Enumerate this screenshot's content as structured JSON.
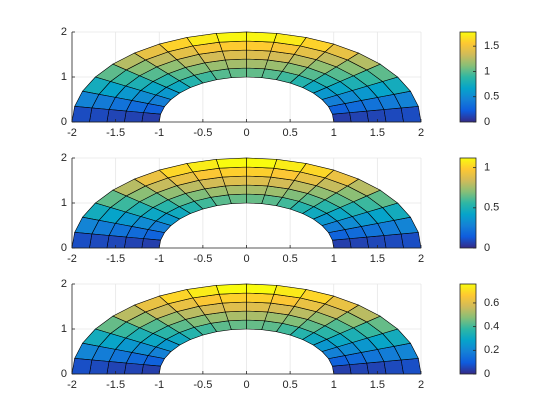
{
  "chart_data": [
    {
      "type": "surface",
      "xlim": [
        -2,
        2
      ],
      "ylim": [
        0,
        2
      ],
      "xticks": [
        -2,
        -1.5,
        -1,
        -0.5,
        0,
        0.5,
        1,
        1.5,
        2
      ],
      "yticks": [
        0,
        1,
        2
      ],
      "grid": true,
      "r_edges": [
        1,
        1.2,
        1.4,
        1.6,
        1.8,
        2
      ],
      "theta_edges": [
        0,
        10,
        20,
        30,
        40,
        50,
        60,
        70,
        80,
        90,
        100,
        110,
        120,
        130,
        140,
        150,
        160,
        170,
        180
      ],
      "values": [
        [
          0.09,
          0.26,
          0.43,
          0.59,
          0.72,
          0.84,
          0.93,
          0.99,
          1.02,
          1.02,
          0.99,
          0.93,
          0.84,
          0.72,
          0.59,
          0.43,
          0.26,
          0.09
        ],
        [
          0.11,
          0.31,
          0.51,
          0.69,
          0.85,
          0.99,
          1.1,
          1.17,
          1.2,
          1.2,
          1.17,
          1.1,
          0.99,
          0.85,
          0.69,
          0.51,
          0.31,
          0.11
        ],
        [
          0.12,
          0.36,
          0.59,
          0.8,
          0.99,
          1.14,
          1.26,
          1.35,
          1.39,
          1.39,
          1.35,
          1.26,
          1.14,
          0.99,
          0.8,
          0.59,
          0.36,
          0.12
        ],
        [
          0.14,
          0.41,
          0.67,
          0.91,
          1.12,
          1.29,
          1.43,
          1.53,
          1.57,
          1.57,
          1.53,
          1.43,
          1.29,
          1.12,
          0.91,
          0.67,
          0.41,
          0.14
        ],
        [
          0.15,
          0.46,
          0.75,
          1.01,
          1.25,
          1.45,
          1.6,
          1.71,
          1.76,
          1.76,
          1.71,
          1.6,
          1.45,
          1.25,
          1.01,
          0.75,
          0.46,
          0.15
        ]
      ],
      "clim": [
        0,
        1.78
      ],
      "cticks": [
        0,
        0.5,
        1,
        1.5
      ],
      "colormap": [
        "#352a87",
        "#0f5cdd",
        "#1481d6",
        "#06a4ca",
        "#2eb7a4",
        "#87bf77",
        "#d1bb59",
        "#fec832",
        "#f9fb0e"
      ]
    },
    {
      "type": "surface",
      "xlim": [
        -2,
        2
      ],
      "ylim": [
        0,
        2
      ],
      "xticks": [
        -2,
        -1.5,
        -1,
        -0.5,
        0,
        0.5,
        1,
        1.5,
        2
      ],
      "yticks": [
        0,
        1,
        2
      ],
      "grid": true,
      "r_edges": [
        1,
        1.2,
        1.4,
        1.6,
        1.8,
        2
      ],
      "theta_edges": [
        0,
        10,
        20,
        30,
        40,
        50,
        60,
        70,
        80,
        90,
        100,
        110,
        120,
        130,
        140,
        150,
        160,
        170,
        180
      ],
      "values": [
        [
          0.06,
          0.17,
          0.27,
          0.37,
          0.46,
          0.53,
          0.59,
          0.63,
          0.65,
          0.65,
          0.63,
          0.59,
          0.53,
          0.46,
          0.37,
          0.27,
          0.17,
          0.06
        ],
        [
          0.07,
          0.2,
          0.32,
          0.44,
          0.54,
          0.63,
          0.69,
          0.74,
          0.76,
          0.76,
          0.74,
          0.69,
          0.63,
          0.54,
          0.44,
          0.32,
          0.2,
          0.07
        ],
        [
          0.08,
          0.23,
          0.37,
          0.51,
          0.63,
          0.72,
          0.8,
          0.85,
          0.88,
          0.88,
          0.85,
          0.8,
          0.72,
          0.63,
          0.51,
          0.37,
          0.23,
          0.08
        ],
        [
          0.09,
          0.26,
          0.42,
          0.58,
          0.71,
          0.82,
          0.91,
          0.97,
          1.0,
          1.0,
          0.97,
          0.91,
          0.82,
          0.71,
          0.58,
          0.42,
          0.26,
          0.09
        ],
        [
          0.1,
          0.29,
          0.47,
          0.64,
          0.79,
          0.92,
          1.02,
          1.08,
          1.12,
          1.12,
          1.08,
          1.02,
          0.92,
          0.79,
          0.64,
          0.47,
          0.29,
          0.1
        ]
      ],
      "clim": [
        0,
        1.12
      ],
      "cticks": [
        0,
        0.5,
        1
      ],
      "colormap": [
        "#352a87",
        "#0f5cdd",
        "#1481d6",
        "#06a4ca",
        "#2eb7a4",
        "#87bf77",
        "#d1bb59",
        "#fec832",
        "#f9fb0e"
      ]
    },
    {
      "type": "surface",
      "xlim": [
        -2,
        2
      ],
      "ylim": [
        0,
        2
      ],
      "xticks": [
        -2,
        -1.5,
        -1,
        -0.5,
        0,
        0.5,
        1,
        1.5,
        2
      ],
      "yticks": [
        0,
        1,
        2
      ],
      "grid": true,
      "r_edges": [
        1,
        1.2,
        1.4,
        1.6,
        1.8,
        2
      ],
      "theta_edges": [
        0,
        10,
        20,
        30,
        40,
        50,
        60,
        70,
        80,
        90,
        100,
        110,
        120,
        130,
        140,
        150,
        160,
        170,
        180
      ],
      "values": [
        [
          0.04,
          0.11,
          0.19,
          0.25,
          0.31,
          0.36,
          0.4,
          0.43,
          0.44,
          0.44,
          0.43,
          0.4,
          0.36,
          0.31,
          0.25,
          0.19,
          0.11,
          0.04
        ],
        [
          0.05,
          0.13,
          0.22,
          0.3,
          0.37,
          0.43,
          0.47,
          0.5,
          0.52,
          0.52,
          0.5,
          0.47,
          0.43,
          0.37,
          0.3,
          0.22,
          0.13,
          0.05
        ],
        [
          0.05,
          0.16,
          0.25,
          0.34,
          0.42,
          0.49,
          0.54,
          0.58,
          0.6,
          0.6,
          0.58,
          0.54,
          0.49,
          0.42,
          0.34,
          0.25,
          0.16,
          0.05
        ],
        [
          0.06,
          0.18,
          0.29,
          0.39,
          0.48,
          0.56,
          0.62,
          0.66,
          0.68,
          0.68,
          0.66,
          0.62,
          0.56,
          0.48,
          0.39,
          0.29,
          0.18,
          0.06
        ],
        [
          0.07,
          0.2,
          0.32,
          0.44,
          0.54,
          0.62,
          0.69,
          0.73,
          0.76,
          0.76,
          0.73,
          0.69,
          0.62,
          0.54,
          0.44,
          0.32,
          0.2,
          0.07
        ]
      ],
      "clim": [
        0,
        0.76
      ],
      "cticks": [
        0,
        0.2,
        0.4,
        0.6
      ],
      "colormap": [
        "#352a87",
        "#0f5cdd",
        "#1481d6",
        "#06a4ca",
        "#2eb7a4",
        "#87bf77",
        "#d1bb59",
        "#fec832",
        "#f9fb0e"
      ]
    }
  ]
}
